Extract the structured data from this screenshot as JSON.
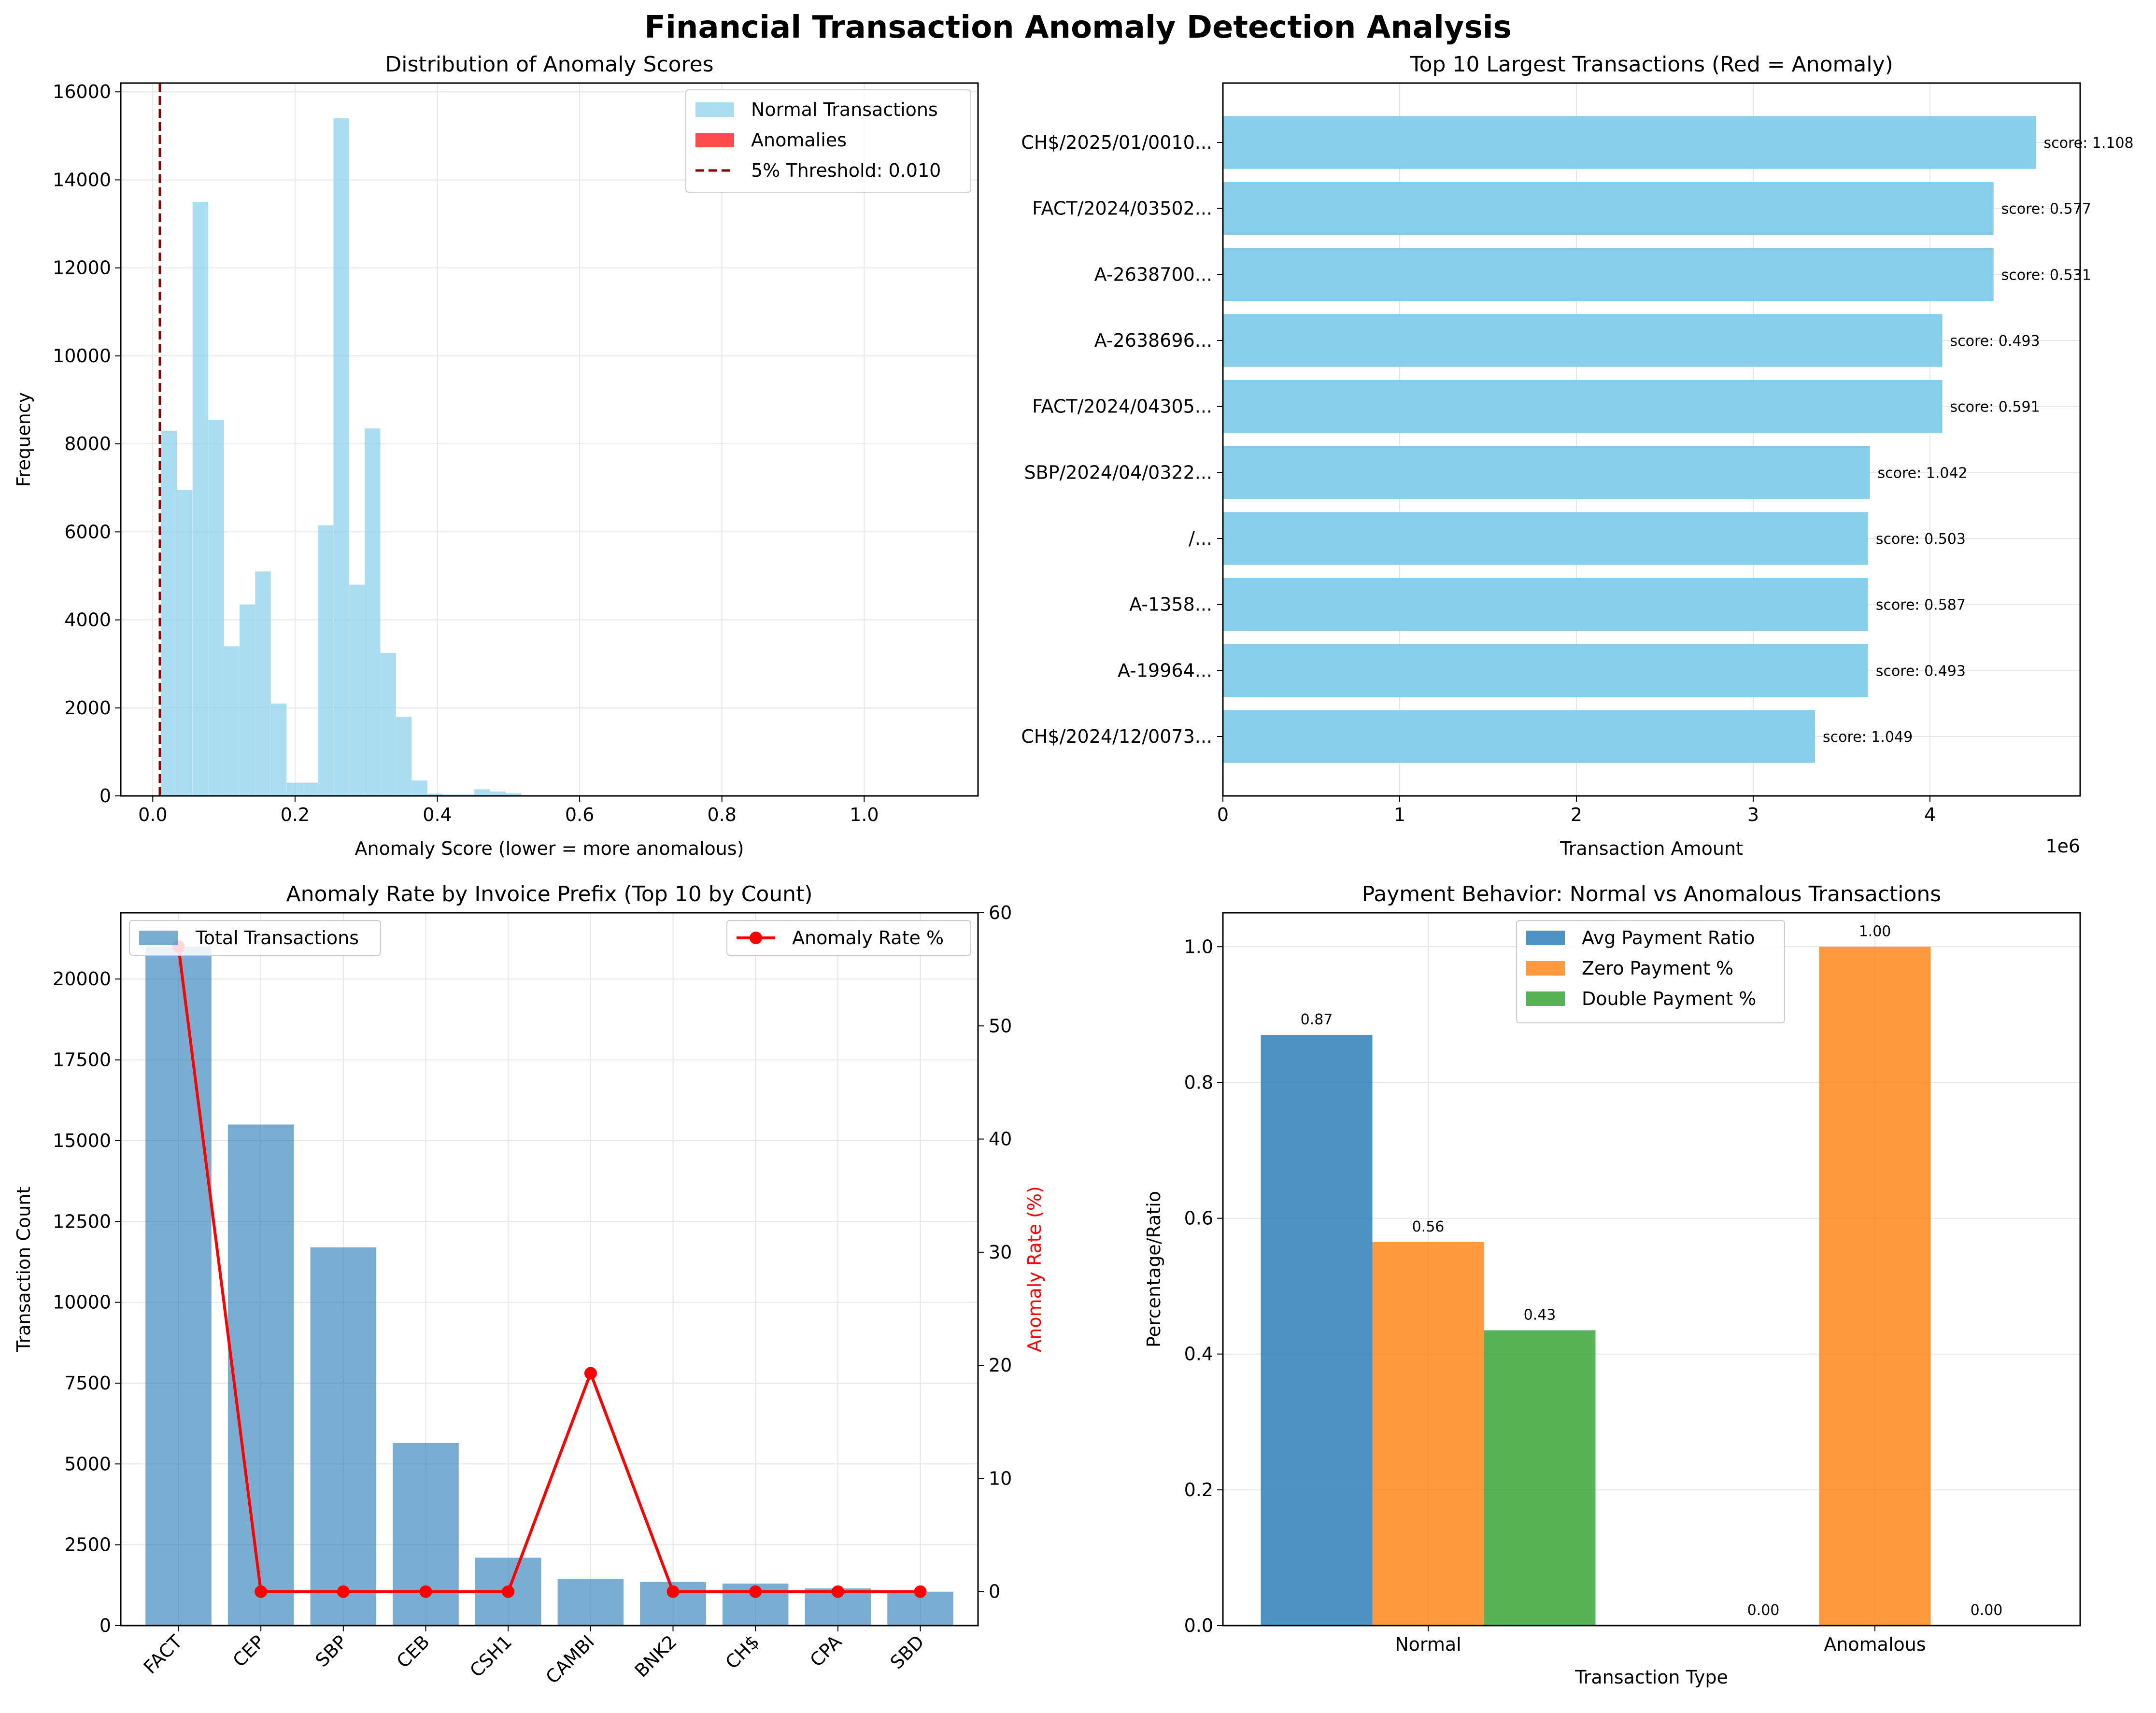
{
  "suptitle": "Financial Transaction Anomaly Detection Analysis",
  "chart_data": [
    {
      "type": "bar",
      "subtype": "histogram",
      "title": "Distribution of Anomaly Scores",
      "xlabel": "Anomaly Score (lower = more anomalous)",
      "ylabel": "Frequency",
      "xlim": [
        -0.045,
        1.16
      ],
      "ylim": [
        0,
        16200
      ],
      "xticks": [
        "0.0",
        "0.2",
        "0.4",
        "0.6",
        "0.8",
        "1.0"
      ],
      "xtick_values": [
        0,
        0.2,
        0.4,
        0.6,
        0.8,
        1.0
      ],
      "yticks": [
        "0",
        "2000",
        "4000",
        "6000",
        "8000",
        "10000",
        "12000",
        "14000",
        "16000"
      ],
      "ytick_values": [
        0,
        2000,
        4000,
        6000,
        8000,
        10000,
        12000,
        14000,
        16000
      ],
      "bin_width": 0.0219,
      "bins": [
        {
          "x0": 0.012,
          "v": 8300
        },
        {
          "x0": 0.034,
          "v": 6950
        },
        {
          "x0": 0.056,
          "v": 13500
        },
        {
          "x0": 0.078,
          "v": 8550
        },
        {
          "x0": 0.1,
          "v": 3400
        },
        {
          "x0": 0.122,
          "v": 4350
        },
        {
          "x0": 0.144,
          "v": 5100
        },
        {
          "x0": 0.166,
          "v": 2100
        },
        {
          "x0": 0.188,
          "v": 300
        },
        {
          "x0": 0.21,
          "v": 300
        },
        {
          "x0": 0.232,
          "v": 6150
        },
        {
          "x0": 0.254,
          "v": 15400
        },
        {
          "x0": 0.276,
          "v": 4800
        },
        {
          "x0": 0.298,
          "v": 8350
        },
        {
          "x0": 0.32,
          "v": 3250
        },
        {
          "x0": 0.342,
          "v": 1800
        },
        {
          "x0": 0.364,
          "v": 350
        },
        {
          "x0": 0.386,
          "v": 50
        },
        {
          "x0": 0.408,
          "v": 30
        },
        {
          "x0": 0.43,
          "v": 30
        },
        {
          "x0": 0.452,
          "v": 150
        },
        {
          "x0": 0.474,
          "v": 100
        },
        {
          "x0": 0.496,
          "v": 60
        }
      ],
      "threshold": 0.01,
      "legend": [
        "Normal Transactions",
        "Anomalies",
        "5% Threshold: 0.010"
      ],
      "legend_position": "top-right",
      "grid": true
    },
    {
      "type": "bar",
      "orientation": "horizontal",
      "title": "Top 10 Largest Transactions (Red = Anomaly)",
      "xlabel": "Transaction Amount",
      "x_offset_label": "1e6",
      "xlim": [
        0,
        4.85
      ],
      "xticks": [
        "0",
        "1",
        "2",
        "3",
        "4"
      ],
      "xtick_values": [
        0,
        1,
        2,
        3,
        4
      ],
      "categories": [
        "CH$/2025/01/0010...",
        "FACT/2024/03502...",
        "A-2638700...",
        "A-2638696...",
        "FACT/2024/04305...",
        "SBP/2024/04/0322...",
        "/...",
        "A-1358...",
        "A-19964...",
        "CH$/2024/12/0073..."
      ],
      "values": [
        4.6,
        4.36,
        4.36,
        4.07,
        4.07,
        3.66,
        3.65,
        3.65,
        3.65,
        3.35
      ],
      "labels": [
        "score: 1.108",
        "score: 0.577",
        "score: 0.531",
        "score: 0.493",
        "score: 0.591",
        "score: 1.042",
        "score: 0.503",
        "score: 0.587",
        "score: 0.493",
        "score: 1.049"
      ],
      "grid": true
    },
    {
      "type": "bar",
      "title": "Anomaly Rate by Invoice Prefix (Top 10 by Count)",
      "ylabel": "Transaction Count",
      "y2label": "Anomaly Rate (%)",
      "categories": [
        "FACT",
        "CEP",
        "SBP",
        "CEB",
        "CSH1",
        "CAMBI",
        "BNK2",
        "CH$",
        "CPA",
        "SBD"
      ],
      "ylim": [
        0,
        22050
      ],
      "y2lim": [
        -3,
        60
      ],
      "yticks": [
        "0",
        "2500",
        "5000",
        "7500",
        "10000",
        "12500",
        "15000",
        "17500",
        "20000"
      ],
      "ytick_values": [
        0,
        2500,
        5000,
        7500,
        10000,
        12500,
        15000,
        17500,
        20000
      ],
      "y2ticks": [
        "0",
        "10",
        "20",
        "30",
        "40",
        "50",
        "60"
      ],
      "y2tick_values": [
        0,
        10,
        20,
        30,
        40,
        50,
        60
      ],
      "series": [
        {
          "name": "Total Transactions",
          "values": [
            21000,
            15500,
            11700,
            5650,
            2100,
            1450,
            1350,
            1300,
            1150,
            1050
          ]
        },
        {
          "name": "Anomaly Rate %",
          "values": [
            57.0,
            0,
            0,
            0,
            0,
            19.3,
            0,
            0,
            0,
            0
          ]
        }
      ],
      "legend_left": "Total Transactions",
      "legend_right": "Anomaly Rate %",
      "grid": true
    },
    {
      "type": "bar",
      "title": "Payment Behavior: Normal vs Anomalous Transactions",
      "xlabel": "Transaction Type",
      "ylabel": "Percentage/Ratio",
      "categories": [
        "Normal",
        "Anomalous"
      ],
      "ylim": [
        0,
        1.05
      ],
      "yticks": [
        "0.0",
        "0.2",
        "0.4",
        "0.6",
        "0.8",
        "1.0"
      ],
      "ytick_values": [
        0,
        0.2,
        0.4,
        0.6,
        0.8,
        1.0
      ],
      "series": [
        {
          "name": "Avg Payment Ratio",
          "values": [
            0.87,
            0.0
          ],
          "labels": [
            "0.87",
            "0.00"
          ]
        },
        {
          "name": "Zero Payment %",
          "values": [
            0.565,
            1.0
          ],
          "labels": [
            "0.56",
            "1.00"
          ]
        },
        {
          "name": "Double Payment %",
          "values": [
            0.435,
            0.0
          ],
          "labels": [
            "0.43",
            "0.00"
          ]
        }
      ],
      "legend_position": "top-center",
      "grid": true
    }
  ],
  "colors": {
    "histogram": "#87ceeb",
    "anomaly": "#ff0000",
    "threshold": "#8b0000",
    "top10": "#87ceeb",
    "prefix_bars": "#1f77b4",
    "rate_line": "#ff0000",
    "avg_payment": "#1f77b4",
    "zero_payment": "#ff7f0e",
    "double_payment": "#2ca02c",
    "grid": "#e6e6e6"
  }
}
